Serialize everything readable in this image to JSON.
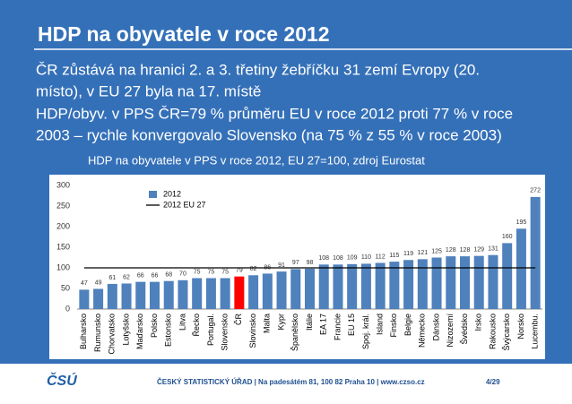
{
  "header": {
    "title": "HDP na obyvatele v roce 2012",
    "lines": [
      "ČR zůstává na hranici 2. a 3. třetiny žebříčku 31 zemí Evropy (20.",
      "místo), v EU 27 byla na 17. místě",
      "HDP/obyv. v PPS ČR=79 % průměru EU v roce 2012 proti 77 % v roce",
      "2003 – rychle konvergovalo Slovensko (na 75 % z 55 % v roce 2003)"
    ]
  },
  "chart_data": {
    "type": "bar",
    "title": "HDP na obyvatele v PPS v roce 2012, EU 27=100, zdroj Eurostat",
    "categories": [
      "Bulharsko",
      "Rumunsko",
      "Chorvatsko",
      "Lotyšsko",
      "Maďarsko",
      "Polsko",
      "Estonsko",
      "Litva",
      "Řecko",
      "Portugal.",
      "Slovensko",
      "ČR",
      "Slovinsko",
      "Malta",
      "Kypr",
      "Španělsko",
      "Itálie",
      "EA 17",
      "Francie",
      "EU 15",
      "Spoj. král.",
      "Island",
      "Finsko",
      "Belgie",
      "Německo",
      "Dánsko",
      "Nizozemí",
      "Švédsko",
      "Irsko",
      "Rakousko",
      "Švýcarsko",
      "Norsko",
      "Lucembu."
    ],
    "series": [
      {
        "name": "2012",
        "type": "bar",
        "color": "#4f81bd",
        "colors": [
          "#4f81bd",
          "#4f81bd",
          "#4f81bd",
          "#4f81bd",
          "#4f81bd",
          "#4f81bd",
          "#4f81bd",
          "#4f81bd",
          "#4f81bd",
          "#4f81bd",
          "#4f81bd",
          "#ff0000",
          "#4f81bd",
          "#4f81bd",
          "#4f81bd",
          "#4f81bd",
          "#4f81bd",
          "#4f81bd",
          "#4f81bd",
          "#4f81bd",
          "#4f81bd",
          "#4f81bd",
          "#4f81bd",
          "#4f81bd",
          "#4f81bd",
          "#4f81bd",
          "#4f81bd",
          "#4f81bd",
          "#4f81bd",
          "#4f81bd",
          "#4f81bd",
          "#4f81bd",
          "#4f81bd"
        ],
        "values": [
          47,
          49,
          61,
          62,
          66,
          66,
          68,
          70,
          75,
          75,
          75,
          79,
          82,
          86,
          91,
          97,
          98,
          108,
          108,
          109,
          110,
          112,
          115,
          119,
          121,
          125,
          128,
          128,
          129,
          131,
          160,
          195,
          272
        ]
      },
      {
        "name": "2012 EU 27",
        "type": "line",
        "color": "#000000",
        "values": [
          100,
          100,
          100,
          100,
          100,
          100,
          100,
          100,
          100,
          100,
          100,
          100,
          100,
          100,
          100,
          100,
          100,
          100,
          100,
          100,
          100,
          100,
          100,
          100,
          100,
          100,
          100,
          100,
          100,
          100,
          100,
          100,
          100
        ]
      }
    ],
    "ylim": [
      0,
      300
    ],
    "yticks": [
      0,
      50,
      100,
      150,
      200,
      250,
      300
    ],
    "grid": false
  },
  "footer": {
    "logo": "ČSÚ",
    "text": "ČESKÝ STATISTICKÝ ÚŘAD | Na padesátém 81, 100 82 Praha 10 | www.czso.cz",
    "page": "4/29"
  }
}
